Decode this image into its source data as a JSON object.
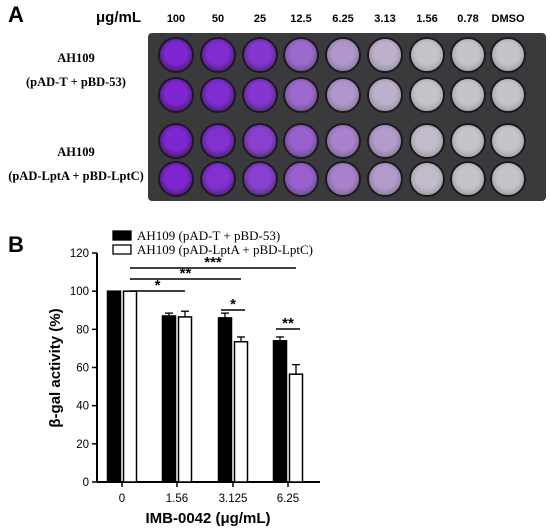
{
  "panel_a": {
    "letter": "A",
    "unit_label": "μg/mL",
    "concentrations": [
      "100",
      "50",
      "25",
      "12.5",
      "6.25",
      "3.13",
      "1.56",
      "0.78",
      "DMSO"
    ],
    "strains": [
      {
        "name": "AH109",
        "plasmids": "(pAD-T + pBD-53)",
        "well_color": "#7a1fd0",
        "intensity": [
          0.95,
          0.92,
          0.86,
          0.55,
          0.28,
          0.12,
          0.0,
          0.0,
          0.0
        ]
      },
      {
        "name": "AH109",
        "plasmids": "(pAD-LptA + pBD-LptC)",
        "well_color": "#7a1fd0",
        "intensity": [
          0.95,
          0.9,
          0.8,
          0.6,
          0.4,
          0.25,
          0.05,
          0.0,
          0.0
        ]
      }
    ]
  },
  "chart_data": {
    "type": "bar",
    "panel_letter": "B",
    "title": "",
    "xlabel": "IMB-0042 (μg/mL)",
    "ylabel": "β-gal activity (%)",
    "categories": [
      "0",
      "1.56",
      "3.125",
      "6.25"
    ],
    "ylim": [
      0,
      120
    ],
    "yticks": [
      0,
      20,
      40,
      60,
      80,
      100,
      120
    ],
    "grid": false,
    "legend_position": "top",
    "series": [
      {
        "name": "AH109 (pAD-T +  pBD-53)",
        "color": "#000000",
        "values": [
          100,
          87,
          86,
          74
        ],
        "errors": [
          0,
          1.5,
          2.5,
          2
        ]
      },
      {
        "name": "AH109 (pAD-LptA + pBD-LptC)",
        "color": "#ffffff",
        "values": [
          100,
          86.5,
          73.5,
          56.5
        ],
        "errors": [
          0,
          3,
          2.5,
          5
        ]
      }
    ],
    "significance": [
      {
        "label": "*",
        "from_category": "0",
        "to_category": "1.56"
      },
      {
        "label": "**",
        "from_category": "0",
        "to_category": "3.125"
      },
      {
        "label": "***",
        "from_category": "0",
        "to_category": "6.25"
      },
      {
        "label": "*",
        "from_category": "3.125",
        "to_category": "3.125"
      },
      {
        "label": "**",
        "from_category": "6.25",
        "to_category": "6.25"
      }
    ]
  }
}
